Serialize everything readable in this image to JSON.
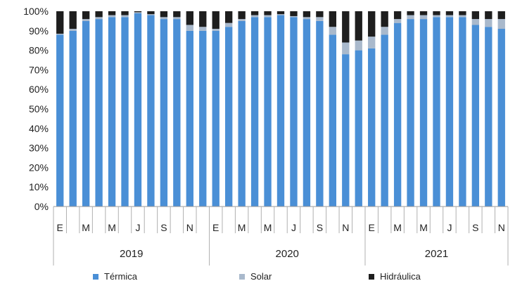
{
  "chart_data": {
    "type": "bar",
    "stacked": true,
    "ylim": [
      0,
      100
    ],
    "yticks": [
      "0%",
      "10%",
      "20%",
      "30%",
      "40%",
      "50%",
      "60%",
      "70%",
      "80%",
      "90%",
      "100%"
    ],
    "month_labels": [
      "E",
      "",
      "M",
      "",
      "M",
      "",
      "J",
      "",
      "S",
      "",
      "N",
      "",
      "E",
      "",
      "M",
      "",
      "M",
      "",
      "J",
      "",
      "S",
      "",
      "N",
      "",
      "E",
      "",
      "M",
      "",
      "M",
      "",
      "J",
      "",
      "S",
      "",
      "N"
    ],
    "years": [
      {
        "label": "2019",
        "count": 12
      },
      {
        "label": "2020",
        "count": 12
      },
      {
        "label": "2021",
        "count": 11
      }
    ],
    "series": [
      {
        "name": "Térmica",
        "color": "#4a8fd6",
        "values": [
          88,
          90,
          95,
          96,
          97,
          97,
          99,
          98,
          96,
          96,
          90,
          90,
          90,
          92,
          95,
          97,
          97,
          98,
          97,
          96,
          95,
          88,
          78,
          80,
          81,
          88,
          94,
          96,
          96,
          97,
          97,
          97,
          93,
          92,
          91
        ]
      },
      {
        "name": "Solar",
        "color": "#a9b9cc",
        "values": [
          0.5,
          1,
          1,
          1,
          1,
          1,
          0.5,
          0.5,
          1,
          1,
          3,
          2,
          1,
          2,
          1,
          1,
          1,
          0.5,
          0.5,
          1,
          2,
          4,
          6,
          5,
          6,
          4,
          2,
          2,
          2,
          1,
          1,
          1,
          3,
          4,
          5
        ]
      },
      {
        "name": "Hidráulica",
        "color": "#1e1e1e",
        "values": [
          11.5,
          9,
          4,
          3,
          2,
          2,
          0.5,
          1.5,
          3,
          3,
          7,
          8,
          9,
          6,
          4,
          2,
          2,
          1.5,
          2.5,
          3,
          3,
          8,
          16,
          15,
          13,
          8,
          4,
          2,
          2,
          2,
          2,
          2,
          4,
          4,
          4
        ]
      }
    ],
    "legend_position": "bottom",
    "grid": false
  }
}
